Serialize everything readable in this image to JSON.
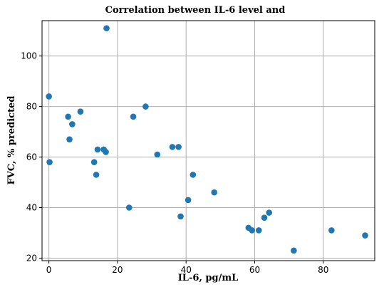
{
  "chart_data": {
    "type": "scatter",
    "title": "Correlation between IL-6 level and",
    "xlabel": "IL-6, pg/mL",
    "ylabel": "FVC, % predicted",
    "xlim": [
      -2,
      95
    ],
    "ylim": [
      19,
      114
    ],
    "xticks": [
      0,
      20,
      40,
      60,
      80
    ],
    "yticks": [
      20,
      40,
      60,
      80,
      100
    ],
    "grid": true,
    "marker_color": "#1f77b4",
    "points": [
      {
        "x": 0,
        "y": 84
      },
      {
        "x": 0.2,
        "y": 58
      },
      {
        "x": 5.6,
        "y": 76
      },
      {
        "x": 6,
        "y": 67
      },
      {
        "x": 6.8,
        "y": 73
      },
      {
        "x": 9.2,
        "y": 78
      },
      {
        "x": 13.2,
        "y": 58
      },
      {
        "x": 13.8,
        "y": 53
      },
      {
        "x": 14.2,
        "y": 63
      },
      {
        "x": 16,
        "y": 63
      },
      {
        "x": 16.6,
        "y": 62
      },
      {
        "x": 16.8,
        "y": 111
      },
      {
        "x": 23.4,
        "y": 40
      },
      {
        "x": 24.6,
        "y": 76
      },
      {
        "x": 28.2,
        "y": 80
      },
      {
        "x": 31.6,
        "y": 61
      },
      {
        "x": 36,
        "y": 64
      },
      {
        "x": 37.8,
        "y": 64
      },
      {
        "x": 38.4,
        "y": 36.5
      },
      {
        "x": 40.6,
        "y": 43
      },
      {
        "x": 42,
        "y": 53
      },
      {
        "x": 48.2,
        "y": 46
      },
      {
        "x": 58.2,
        "y": 32
      },
      {
        "x": 59.2,
        "y": 31
      },
      {
        "x": 61.2,
        "y": 31
      },
      {
        "x": 62.8,
        "y": 36
      },
      {
        "x": 64.2,
        "y": 38
      },
      {
        "x": 71.4,
        "y": 23
      },
      {
        "x": 82.4,
        "y": 31
      },
      {
        "x": 92.2,
        "y": 29
      }
    ]
  }
}
